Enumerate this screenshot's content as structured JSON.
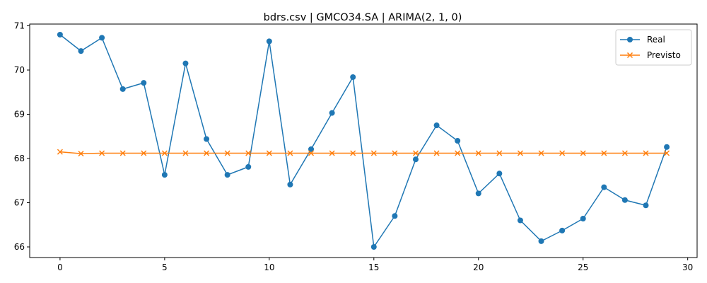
{
  "chart_data": {
    "type": "line",
    "title": "bdrs.csv | GMCO34.SA | ARIMA(2, 1, 0)",
    "xlabel": "",
    "ylabel": "",
    "xlim": [
      -1.45,
      30.45
    ],
    "ylim": [
      65.76,
      71.04
    ],
    "xticks": [
      0,
      5,
      10,
      15,
      20,
      25,
      30
    ],
    "yticks": [
      66,
      67,
      68,
      69,
      70,
      71
    ],
    "grid": false,
    "legend_position": "top-right",
    "x": [
      0,
      1,
      2,
      3,
      4,
      5,
      6,
      7,
      8,
      9,
      10,
      11,
      12,
      13,
      14,
      15,
      16,
      17,
      18,
      19,
      20,
      21,
      22,
      23,
      24,
      25,
      26,
      27,
      28,
      29
    ],
    "series": [
      {
        "name": "Real",
        "color": "#1f77b4",
        "marker": "circle",
        "values": [
          70.8,
          70.43,
          70.73,
          69.57,
          69.71,
          67.63,
          70.15,
          68.44,
          67.63,
          67.81,
          70.65,
          67.41,
          68.21,
          69.03,
          69.84,
          66.0,
          66.7,
          67.98,
          68.75,
          68.4,
          67.21,
          67.66,
          66.6,
          66.13,
          66.37,
          66.64,
          67.35,
          67.06,
          66.94,
          68.26
        ]
      },
      {
        "name": "Previsto",
        "color": "#ff7f0e",
        "marker": "x",
        "values": [
          68.15,
          68.11,
          68.12,
          68.12,
          68.12,
          68.12,
          68.12,
          68.12,
          68.12,
          68.12,
          68.12,
          68.12,
          68.12,
          68.12,
          68.12,
          68.12,
          68.12,
          68.12,
          68.12,
          68.12,
          68.12,
          68.12,
          68.12,
          68.12,
          68.12,
          68.12,
          68.12,
          68.12,
          68.12,
          68.12
        ]
      }
    ]
  }
}
